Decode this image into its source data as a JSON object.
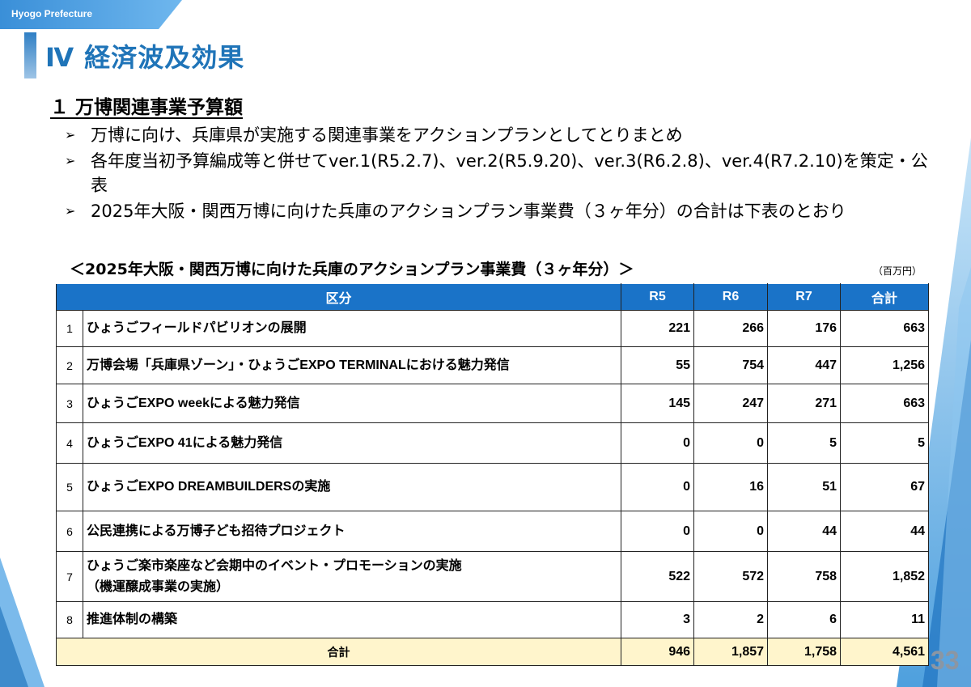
{
  "header": {
    "org": "Hyogo Prefecture",
    "title": "Ⅳ 経済波及効果"
  },
  "section": {
    "heading": "１ 万博関連事業予算額"
  },
  "bullets": [
    "万博に向け、兵庫県が実施する関連事業をアクションプランとしてとりまとめ",
    "各年度当初予算編成等と併せてver.1(R5.2.7)、ver.2(R5.9.20)、ver.3(R6.2.8)、ver.4(R7.2.10)を策定・公表",
    "2025年大阪・関西万博に向けた兵庫のアクションプラン事業費（３ヶ年分）の合計は下表のとおり"
  ],
  "table": {
    "title": "＜2025年大阪・関西万博に向けた兵庫のアクションプラン事業費（３ヶ年分）＞",
    "unit": "（百万円）",
    "headers": [
      "区分",
      "R5",
      "R6",
      "R7",
      "合計"
    ],
    "rows": [
      {
        "no": "1",
        "label": "ひょうごフィールドパビリオンの展開",
        "r5": "221",
        "r6": "266",
        "r7": "176",
        "total": "663"
      },
      {
        "no": "2",
        "label": "万博会場「兵庫県ゾーン」・ひょうごEXPO TERMINALにおける魅力発信",
        "r5": "55",
        "r6": "754",
        "r7": "447",
        "total": "1,256"
      },
      {
        "no": "3",
        "label": "ひょうごEXPO weekによる魅力発信",
        "r5": "145",
        "r6": "247",
        "r7": "271",
        "total": "663"
      },
      {
        "no": "4",
        "label": "ひょうごEXPO 41による魅力発信",
        "r5": "0",
        "r6": "0",
        "r7": "5",
        "total": "5"
      },
      {
        "no": "5",
        "label": "ひょうごEXPO DREAMBUILDERSの実施",
        "r5": "0",
        "r6": "16",
        "r7": "51",
        "total": "67"
      },
      {
        "no": "6",
        "label": "公民連携による万博子ども招待プロジェクト",
        "r5": "0",
        "r6": "0",
        "r7": "44",
        "total": "44"
      },
      {
        "no": "7",
        "label": "ひょうご楽市楽座など会期中のイベント・プロモーションの実施",
        "label2": "（機運醸成事業の実施）",
        "r5": "522",
        "r6": "572",
        "r7": "758",
        "total": "1,852"
      },
      {
        "no": "8",
        "label": "推進体制の構築",
        "r5": "3",
        "r6": "2",
        "r7": "6",
        "total": "11"
      }
    ],
    "total": {
      "label": "合計",
      "r5": "946",
      "r6": "1,857",
      "r7": "1,758",
      "total": "4,561"
    }
  },
  "page_number": "33",
  "colors": {
    "accent": "#1f74b8",
    "header_bg": "#1a73c8",
    "total_bg": "#fff5cc",
    "tag_bg": "#2b8bd6"
  }
}
